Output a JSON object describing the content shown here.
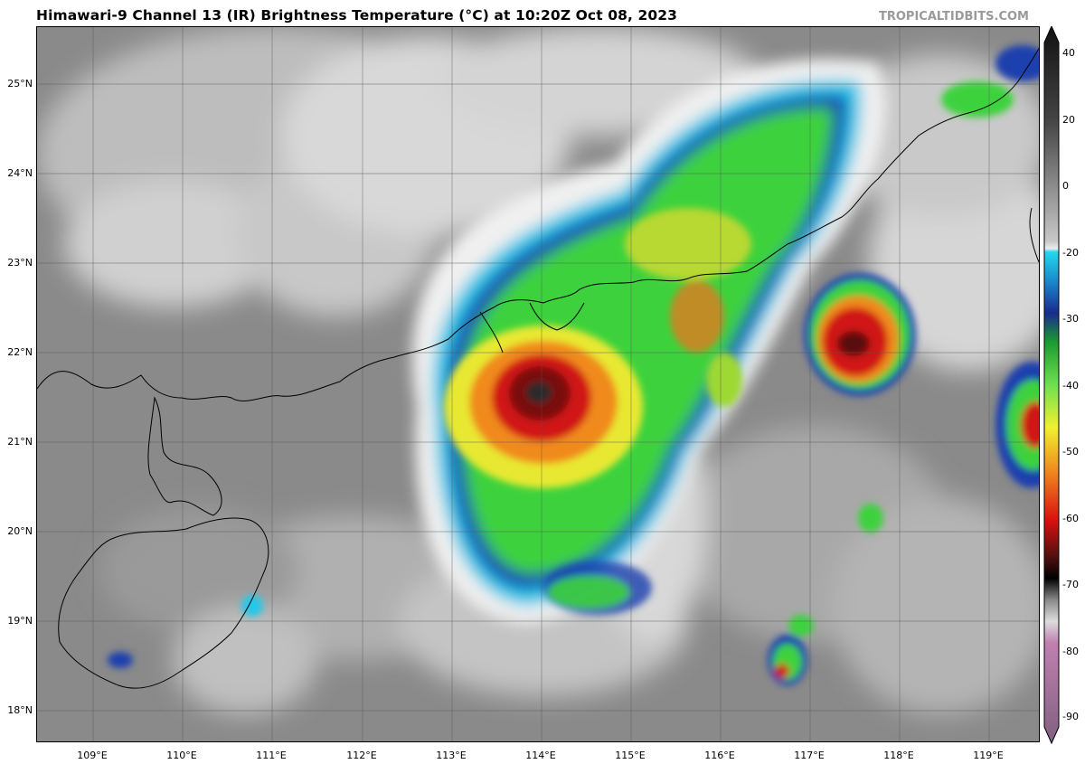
{
  "header": {
    "title": "Himawari-9 Channel 13 (IR) Brightness Temperature (°C) at 10:20Z Oct 08, 2023",
    "credit": "TROPICALTIDBITS.COM"
  },
  "axes": {
    "lat_labels": [
      "25°N",
      "24°N",
      "23°N",
      "22°N",
      "21°N",
      "20°N",
      "19°N",
      "18°N"
    ],
    "lon_labels": [
      "109°E",
      "110°E",
      "111°E",
      "112°E",
      "113°E",
      "114°E",
      "115°E",
      "116°E",
      "117°E",
      "118°E",
      "119°E"
    ],
    "lat_range": [
      17.64,
      25.64
    ],
    "lon_range": [
      108.4,
      119.6
    ]
  },
  "colorbar": {
    "labels": [
      "40",
      "20",
      "0",
      "-20",
      "-30",
      "-40",
      "-50",
      "-60",
      "-70",
      "-80",
      "-90"
    ],
    "range": [
      -95,
      43
    ]
  },
  "colors": {
    "warm_gray": "#8f8f8f",
    "cloud_white": "#e8e8e8",
    "cyan": "#19c9e8",
    "blue": "#1a4bb8",
    "green": "#3cd23c",
    "yellow": "#f0e830",
    "orange": "#f08a1e",
    "red": "#d01818",
    "darkred": "#5a0a0a"
  }
}
